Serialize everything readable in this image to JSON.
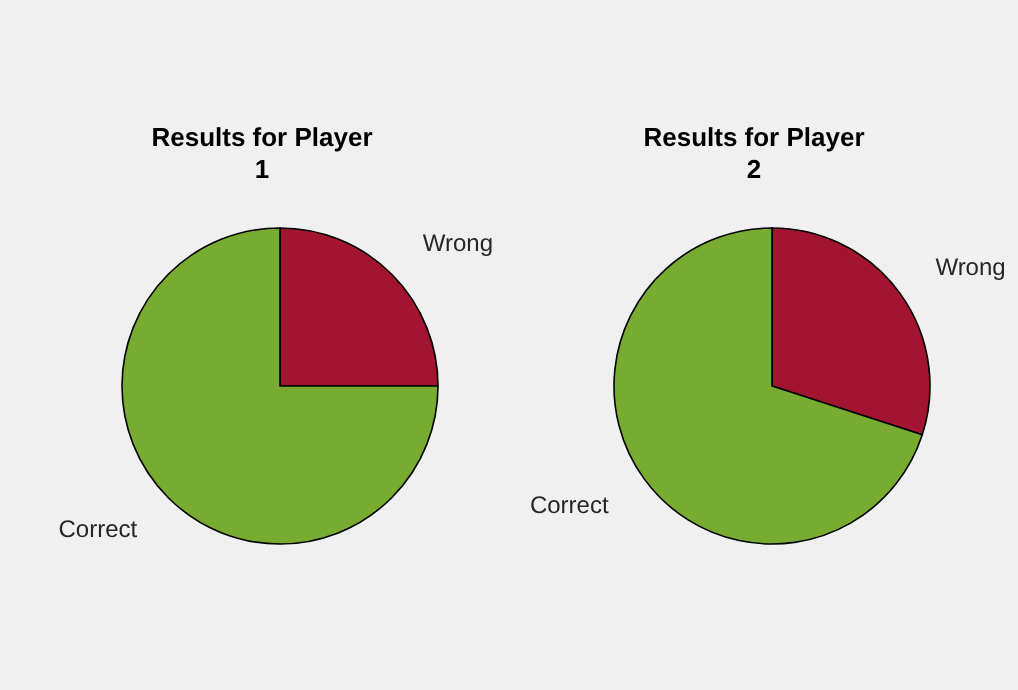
{
  "chart_data": [
    {
      "type": "pie",
      "title": "Results for Player 1",
      "categories": [
        "Wrong",
        "Correct"
      ],
      "values": [
        25,
        75
      ],
      "colors": [
        "#a2142f",
        "#77ac30"
      ],
      "legend": false
    },
    {
      "type": "pie",
      "title": "Results for Player 2",
      "categories": [
        "Wrong",
        "Correct"
      ],
      "values": [
        30,
        70
      ],
      "colors": [
        "#a2142f",
        "#77ac30"
      ],
      "legend": false
    }
  ]
}
